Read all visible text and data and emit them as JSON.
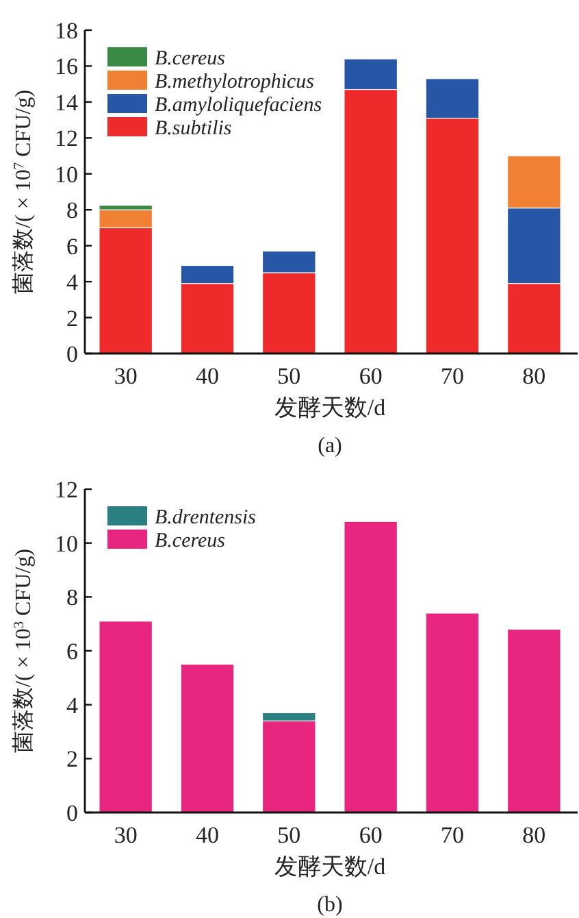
{
  "chart_data": [
    {
      "type": "bar",
      "stacked": true,
      "xlabel": "发酵天数/d",
      "ylabel": "菌落数/( × 10$^{7}$ CFU/g)",
      "annotations": [
        "(a)"
      ],
      "categories": [
        "30",
        "40",
        "50",
        "60",
        "70",
        "80"
      ],
      "ylim": [
        0,
        18
      ],
      "yticks": [
        0,
        2,
        4,
        6,
        8,
        10,
        12,
        14,
        16,
        18
      ],
      "legend": "top left",
      "series": [
        {
          "name": "B.subtilis",
          "color": "#ee2a2a",
          "values": [
            7.0,
            3.9,
            4.5,
            14.7,
            13.1,
            3.9
          ]
        },
        {
          "name": "B.amyloliquefaciens",
          "color": "#2756a6",
          "values": [
            null,
            1.0,
            1.2,
            1.7,
            2.2,
            4.2
          ]
        },
        {
          "name": "B.methylotrophicus",
          "color": "#f08033",
          "values": [
            1.0,
            null,
            null,
            null,
            null,
            2.9
          ]
        },
        {
          "name": "B.cereus",
          "color": "#3a8a45",
          "values": [
            0.25,
            null,
            null,
            null,
            null,
            null
          ]
        }
      ]
    },
    {
      "type": "bar",
      "stacked": true,
      "xlabel": "发酵天数/d",
      "ylabel": "菌落数/( × 10$^{3}$ CFU/g)",
      "annotations": [
        "(b)"
      ],
      "categories": [
        "30",
        "40",
        "50",
        "60",
        "70",
        "80"
      ],
      "ylim": [
        0,
        12
      ],
      "yticks": [
        0,
        2,
        4,
        6,
        8,
        10,
        12
      ],
      "legend": "top left",
      "series": [
        {
          "name": "B.cereus",
          "color": "#e8267f",
          "values": [
            7.1,
            5.5,
            3.4,
            10.8,
            7.4,
            6.8
          ]
        },
        {
          "name": "B.drentensis",
          "color": "#2a8080",
          "values": [
            null,
            null,
            0.3,
            null,
            null,
            null
          ]
        }
      ]
    }
  ]
}
